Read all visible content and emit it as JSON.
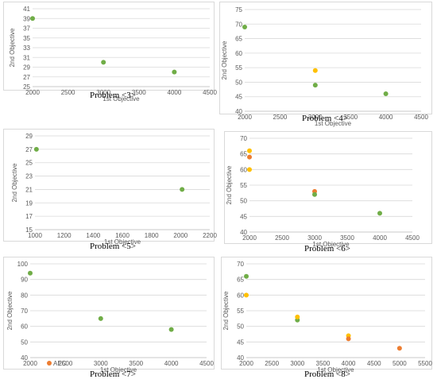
{
  "colors": {
    "green": "#70ad47",
    "yellow": "#ffc000",
    "orange": "#ed7d31",
    "grid": "#d9d9d9",
    "tick": "#595959"
  },
  "chart_data": [
    {
      "type": "scatter",
      "caption": "Problem <3>",
      "xlabel": "1st Objective",
      "ylabel": "2nd Objective",
      "xlim": [
        2000,
        4500
      ],
      "xticks": [
        2000,
        2500,
        3000,
        3500,
        4000,
        4500
      ],
      "ylim": [
        25,
        41
      ],
      "yticks": [
        25,
        27,
        29,
        31,
        33,
        35,
        37,
        39,
        41
      ],
      "grid": true,
      "series": [
        {
          "color": "green",
          "points": [
            [
              2000,
              39
            ],
            [
              3000,
              30
            ],
            [
              4000,
              28
            ]
          ]
        }
      ]
    },
    {
      "type": "scatter",
      "caption": "Problem <4>",
      "xlabel": "1st Objective",
      "ylabel": "2nd Objective",
      "xlim": [
        2000,
        4500
      ],
      "xticks": [
        2000,
        2500,
        3000,
        3500,
        4000,
        4500
      ],
      "ylim": [
        40,
        75
      ],
      "yticks": [
        40,
        45,
        50,
        55,
        60,
        65,
        70,
        75
      ],
      "grid": true,
      "series": [
        {
          "color": "green",
          "points": [
            [
              2000,
              69
            ],
            [
              3000,
              49
            ],
            [
              4000,
              46
            ]
          ]
        },
        {
          "color": "yellow",
          "points": [
            [
              3000,
              54
            ]
          ]
        }
      ]
    },
    {
      "type": "scatter",
      "caption": "Problem <5>",
      "xlabel": "1st Objective",
      "ylabel": "2nd Objective",
      "xlim": [
        1000,
        2200
      ],
      "xticks": [
        1000,
        1200,
        1400,
        1600,
        1800,
        2000,
        2200
      ],
      "ylim": [
        15,
        29
      ],
      "yticks": [
        15,
        17,
        19,
        21,
        23,
        25,
        27,
        29
      ],
      "grid": true,
      "series": [
        {
          "color": "green",
          "points": [
            [
              1010,
              27
            ],
            [
              2010,
              21
            ]
          ]
        }
      ]
    },
    {
      "type": "scatter",
      "caption": "Problem <6>",
      "xlabel": "1st Objective",
      "ylabel": "2nd Objective",
      "xlim": [
        2000,
        4500
      ],
      "xticks": [
        2000,
        2500,
        3000,
        3500,
        4000,
        4500
      ],
      "ylim": [
        40,
        70
      ],
      "yticks": [
        40,
        45,
        50,
        55,
        60,
        65,
        70
      ],
      "grid": true,
      "series": [
        {
          "color": "yellow",
          "points": [
            [
              2000,
              66
            ],
            [
              2000,
              60
            ]
          ]
        },
        {
          "color": "orange",
          "points": [
            [
              2000,
              64
            ],
            [
              3000,
              53
            ]
          ]
        },
        {
          "color": "green",
          "points": [
            [
              3000,
              52
            ],
            [
              4000,
              46
            ]
          ]
        }
      ]
    },
    {
      "type": "scatter",
      "caption": "Problem <7>",
      "xlabel": "1st Objective",
      "ylabel": "2nd Objective",
      "xlim": [
        2000,
        4500
      ],
      "xticks": [
        2000,
        2500,
        3000,
        3500,
        4000,
        4500
      ],
      "ylim": [
        40,
        100
      ],
      "yticks": [
        40,
        50,
        60,
        70,
        80,
        90,
        100
      ],
      "grid": true,
      "legend": {
        "placement": "bottom-left",
        "entries": [
          {
            "label": "AEC",
            "color": "orange"
          }
        ]
      },
      "series": [
        {
          "color": "green",
          "points": [
            [
              2000,
              94
            ],
            [
              3000,
              65
            ],
            [
              4000,
              58
            ]
          ]
        }
      ]
    },
    {
      "type": "scatter",
      "caption": "Problem <8>",
      "xlabel": "1st Objective",
      "ylabel": "2nd Objective",
      "xlim": [
        2000,
        5500
      ],
      "xticks": [
        2000,
        2500,
        3000,
        3500,
        4000,
        4500,
        5000,
        5500
      ],
      "ylim": [
        40,
        70
      ],
      "yticks": [
        40,
        45,
        50,
        55,
        60,
        65,
        70
      ],
      "grid": true,
      "series": [
        {
          "color": "green",
          "points": [
            [
              2000,
              66
            ],
            [
              3000,
              52
            ]
          ]
        },
        {
          "color": "yellow",
          "points": [
            [
              2000,
              60
            ],
            [
              3000,
              53
            ],
            [
              4000,
              47
            ]
          ]
        },
        {
          "color": "orange",
          "points": [
            [
              4000,
              46
            ],
            [
              5000,
              43
            ]
          ]
        }
      ]
    }
  ]
}
